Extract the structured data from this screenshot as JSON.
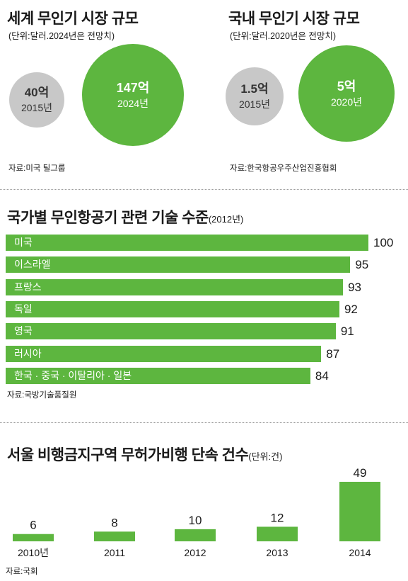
{
  "panel_world": {
    "title": "세계 무인기 시장 규모",
    "unit": "(단위:달러.2024년은 전망치)",
    "small": {
      "value": "40억",
      "year": "2015년"
    },
    "large": {
      "value": "147억",
      "year": "2024년"
    },
    "source": "자료:미국 틸그룹"
  },
  "panel_domestic": {
    "title": "국내 무인기 시장 규모",
    "unit": "(단위:달러.2020년은 전망치)",
    "small": {
      "value": "1.5억",
      "year": "2015년"
    },
    "large": {
      "value": "5억",
      "year": "2020년"
    },
    "source": "자료:한국항공우주산업진흥협회"
  },
  "tech_panel": {
    "title": "국가별 무인항공기 관련 기술 수준",
    "title_suffix": "(2012년)",
    "source": "자료:국방기술품질원"
  },
  "enforcement_panel": {
    "title": "서울 비행금지구역 무허가비행 단속 건수",
    "title_suffix": "(단위:건)",
    "source": "자료:국회"
  },
  "colors": {
    "green": "#5db63f",
    "gray": "#c8c8c8",
    "text": "#1a1a1a"
  },
  "chart_data": [
    {
      "type": "bubble",
      "title": "세계 무인기 시장 규모",
      "categories": [
        "2015년",
        "2024년"
      ],
      "values": [
        40,
        147
      ],
      "value_labels": [
        "40억",
        "147억"
      ]
    },
    {
      "type": "bubble",
      "title": "국내 무인기 시장 규모",
      "categories": [
        "2015년",
        "2020년"
      ],
      "values": [
        1.5,
        5
      ],
      "value_labels": [
        "1.5억",
        "5억"
      ]
    },
    {
      "type": "bar",
      "orientation": "horizontal",
      "title": "국가별 무인항공기 관련 기술 수준(2012년)",
      "categories": [
        "미국",
        "이스라엘",
        "프랑스",
        "독일",
        "영국",
        "러시아",
        "한국 · 중국 · 이탈리아 · 일본"
      ],
      "values": [
        100,
        95,
        93,
        92,
        91,
        87,
        84
      ]
    },
    {
      "type": "bar",
      "orientation": "vertical",
      "title": "서울 비행금지구역 무허가비행 단속 건수(단위:건)",
      "categories": [
        "2010년",
        "2011",
        "2012",
        "2013",
        "2014"
      ],
      "values": [
        6,
        8,
        10,
        12,
        49
      ]
    }
  ]
}
